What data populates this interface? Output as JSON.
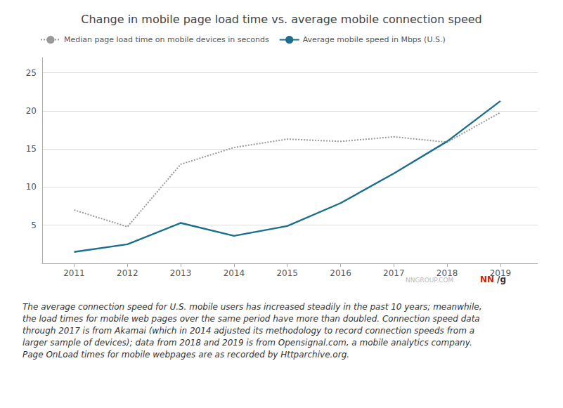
{
  "chart_data": {
    "type": "line",
    "title": "Change in mobile page load time vs. average mobile connection speed",
    "x": [
      2011,
      2012,
      2013,
      2014,
      2015,
      2016,
      2017,
      2018,
      2019
    ],
    "series": [
      {
        "name": "Median page load time on mobile devices in seconds",
        "color": "#999999",
        "line_style": "dotted",
        "values": [
          7.0,
          4.8,
          13.0,
          15.2,
          16.3,
          16.0,
          16.6,
          15.9,
          19.8
        ]
      },
      {
        "name": "Average mobile speed in Mbps (U.S.)",
        "color": "#1a6e8e",
        "line_style": "solid",
        "values": [
          1.5,
          2.5,
          5.3,
          3.6,
          4.9,
          7.9,
          11.8,
          16.0,
          21.3
        ]
      }
    ],
    "xlim": [
      2010.4,
      2019.7
    ],
    "xticks": [
      2011,
      2012,
      2013,
      2014,
      2015,
      2016,
      2017,
      2018,
      2019
    ],
    "ylim": [
      0,
      27
    ],
    "yticks": [
      5,
      10,
      15,
      20,
      25
    ],
    "grid": "y",
    "legend": "upper left",
    "annotations": [
      "NNGROUP.COM",
      "NN",
      "/g",
      "The average connection speed for U.S. mobile users has increased steadily in the past 10 years; meanwhile,\nthe load times for mobile web pages over the same period have more than doubled. Connection speed data\nthrough 2017 is from Akamai (which in 2014 adjusted its methodology to record connection speeds from a\nlarger sample of devices); data from 2018 and 2019 is from Opensignal.com, a mobile analytics company.\nPage OnLoad times for mobile webpages are as recorded by Httparchive.org."
    ]
  }
}
